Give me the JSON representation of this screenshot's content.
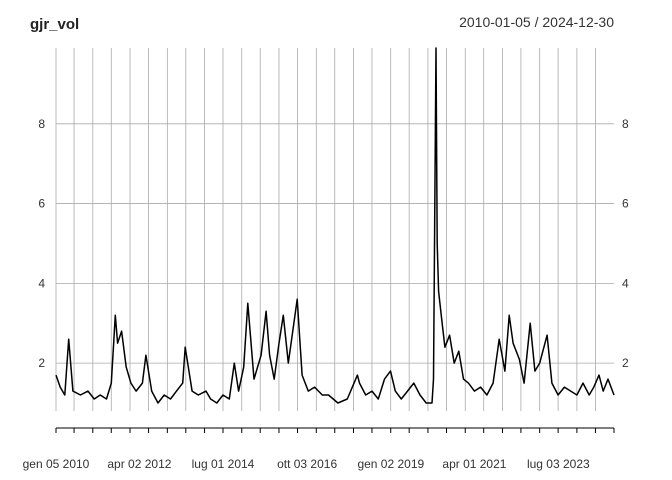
{
  "chart_data": {
    "type": "line",
    "title": "gjr_vol",
    "date_range": "2010-01-05 / 2024-12-30",
    "x_range": [
      "2010-01-05",
      "2024-12-30"
    ],
    "ylim": [
      0.8,
      9.9
    ],
    "y_ticks": [
      2,
      4,
      6,
      8
    ],
    "y_tick_labels": [
      "2",
      "4",
      "6",
      "8"
    ],
    "x_tick_labels": [
      {
        "label": "gen 05 2010",
        "date": "2010-01-05"
      },
      {
        "label": "apr 02 2012",
        "date": "2012-04-02"
      },
      {
        "label": "lug 01 2014",
        "date": "2014-07-01"
      },
      {
        "label": "ott 03 2016",
        "date": "2016-10-03"
      },
      {
        "label": "gen 02 2019",
        "date": "2019-01-02"
      },
      {
        "label": "apr 01 2021",
        "date": "2021-04-01"
      },
      {
        "label": "lug 03 2023",
        "date": "2023-07-03"
      }
    ],
    "grid": true,
    "line_color": "#000000",
    "grid_color": "#aaaaaa",
    "series": [
      {
        "x": [
          "2010-01-05",
          "2010-02-15",
          "2010-04-01",
          "2010-05-10",
          "2010-06-20",
          "2010-09-01",
          "2010-11-15",
          "2011-01-15",
          "2011-03-15",
          "2011-05-15",
          "2011-07-01",
          "2011-08-10",
          "2011-09-01",
          "2011-10-10",
          "2011-11-25",
          "2012-01-10",
          "2012-03-01",
          "2012-05-01",
          "2012-06-05",
          "2012-08-01",
          "2012-10-01",
          "2012-12-01",
          "2013-02-01",
          "2013-04-01",
          "2013-06-01",
          "2013-06-25",
          "2013-09-01",
          "2013-11-01",
          "2014-01-15",
          "2014-03-01",
          "2014-05-01",
          "2014-07-01",
          "2014-09-01",
          "2014-10-20",
          "2014-12-01",
          "2015-01-20",
          "2015-03-01",
          "2015-05-01",
          "2015-07-10",
          "2015-08-28",
          "2015-10-01",
          "2015-11-15",
          "2016-01-01",
          "2016-02-12",
          "2016-04-01",
          "2016-06-28",
          "2016-08-15",
          "2016-10-15",
          "2016-12-15",
          "2017-03-01",
          "2017-05-01",
          "2017-08-01",
          "2017-11-01",
          "2018-02-08",
          "2018-03-01",
          "2018-05-01",
          "2018-07-01",
          "2018-09-01",
          "2018-11-01",
          "2018-12-30",
          "2019-02-15",
          "2019-04-15",
          "2019-06-15",
          "2019-08-15",
          "2019-10-15",
          "2019-12-15",
          "2020-02-10",
          "2020-02-25",
          "2020-03-20",
          "2020-04-01",
          "2020-04-15",
          "2020-05-15",
          "2020-06-15",
          "2020-08-01",
          "2020-09-15",
          "2020-10-30",
          "2020-12-15",
          "2021-02-01",
          "2021-04-01",
          "2021-06-01",
          "2021-08-01",
          "2021-10-01",
          "2021-11-30",
          "2022-01-25",
          "2022-03-08",
          "2022-04-15",
          "2022-06-15",
          "2022-08-01",
          "2022-09-30",
          "2022-11-15",
          "2023-01-01",
          "2023-03-15",
          "2023-05-01",
          "2023-07-01",
          "2023-09-01",
          "2023-11-01",
          "2024-01-01",
          "2024-03-01",
          "2024-05-01",
          "2024-06-15",
          "2024-08-05",
          "2024-09-15",
          "2024-11-01",
          "2024-12-30"
        ],
        "values": [
          1.7,
          1.4,
          1.2,
          2.6,
          1.3,
          1.2,
          1.3,
          1.1,
          1.2,
          1.1,
          1.5,
          3.2,
          2.5,
          2.8,
          1.9,
          1.5,
          1.3,
          1.5,
          2.2,
          1.3,
          1.0,
          1.2,
          1.1,
          1.3,
          1.5,
          2.4,
          1.3,
          1.2,
          1.3,
          1.1,
          1.0,
          1.2,
          1.1,
          2.0,
          1.3,
          1.9,
          3.5,
          1.6,
          2.2,
          3.3,
          2.2,
          1.6,
          2.5,
          3.2,
          2.0,
          3.6,
          1.7,
          1.3,
          1.4,
          1.2,
          1.2,
          1.0,
          1.1,
          1.7,
          1.5,
          1.2,
          1.3,
          1.1,
          1.6,
          1.8,
          1.3,
          1.1,
          1.3,
          1.5,
          1.2,
          1.0,
          1.0,
          1.6,
          9.9,
          5.0,
          3.8,
          3.1,
          2.4,
          2.7,
          2.0,
          2.3,
          1.6,
          1.5,
          1.3,
          1.4,
          1.2,
          1.5,
          2.6,
          1.8,
          3.2,
          2.5,
          2.1,
          1.5,
          3.0,
          1.8,
          2.0,
          2.7,
          1.5,
          1.2,
          1.4,
          1.3,
          1.2,
          1.5,
          1.2,
          1.4,
          1.7,
          1.3,
          1.6,
          1.2
        ]
      }
    ]
  }
}
